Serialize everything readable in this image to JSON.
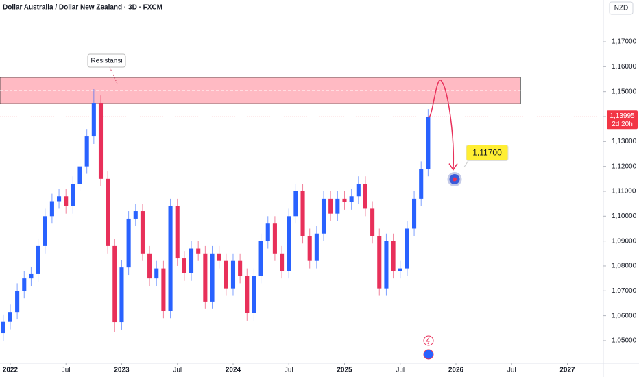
{
  "chart_data": {
    "type": "candlestick",
    "title": "Dollar Australia / Dollar New Zealand · 3D · FXCM",
    "currency": "NZD",
    "up_color": "#2962ff",
    "down_color": "#e8305a",
    "xlim": [
      2021.908,
      2027.323
    ],
    "xticks": [
      2022,
      {
        "value": 2022.5,
        "label": "Jul"
      },
      2023,
      {
        "value": 2023.5,
        "label": "Jul"
      },
      2024,
      {
        "value": 2024.5,
        "label": "Jul"
      },
      2025,
      {
        "value": 2025.5,
        "label": "Jul"
      },
      2026,
      {
        "value": 2026.5,
        "label": "Jul"
      },
      2027
    ],
    "ylim": [
      1.0409,
      1.1868
    ],
    "yticks": [
      {
        "value": 1.05,
        "label": "1,05000"
      },
      {
        "value": 1.06,
        "label": "1,06000"
      },
      {
        "value": 1.07,
        "label": "1,07000"
      },
      {
        "value": 1.08,
        "label": "1,08000"
      },
      {
        "value": 1.09,
        "label": "1,09000"
      },
      {
        "value": 1.1,
        "label": "1,10000"
      },
      {
        "value": 1.11,
        "label": "1,11000"
      },
      {
        "value": 1.12,
        "label": "1,12000"
      },
      {
        "value": 1.13,
        "label": "1,13000"
      },
      {
        "value": 1.14,
        "label": "1,14000"
      },
      {
        "value": 1.15,
        "label": "1,15000"
      },
      {
        "value": 1.16,
        "label": "1,16000"
      },
      {
        "value": 1.17,
        "label": "1,17000"
      }
    ],
    "x": [
      2021.9375,
      2022,
      2022.0625,
      2022.125,
      2022.1875,
      2022.25,
      2022.3125,
      2022.375,
      2022.4375,
      2022.5,
      2022.5625,
      2022.625,
      2022.6875,
      2022.75,
      2022.8125,
      2022.875,
      2022.9375,
      2023,
      2023.0625,
      2023.125,
      2023.1875,
      2023.25,
      2023.3125,
      2023.375,
      2023.4375,
      2023.5,
      2023.5625,
      2023.625,
      2023.6875,
      2023.75,
      2023.8125,
      2023.875,
      2023.9375,
      2024,
      2024.0625,
      2024.125,
      2024.1875,
      2024.25,
      2024.3125,
      2024.375,
      2024.4375,
      2024.5,
      2024.5625,
      2024.625,
      2024.6875,
      2024.75,
      2024.8125,
      2024.875,
      2024.9375,
      2025,
      2025.0625,
      2025.125,
      2025.1875,
      2025.25,
      2025.3125,
      2025.375,
      2025.4375,
      2025.5,
      2025.5625,
      2025.625,
      2025.6875,
      2025.75
    ],
    "open": [
      1.053,
      1.0575,
      1.0615,
      1.07,
      1.075,
      1.0767,
      1.088,
      1.1,
      1.106,
      1.108,
      1.104,
      1.113,
      1.12,
      1.132,
      1.1455,
      1.115,
      1.088,
      1.0574,
      1.0794,
      1.099,
      1.102,
      1.085,
      1.075,
      1.079,
      1.062,
      1.104,
      1.083,
      1.077,
      1.087,
      1.085,
      1.0657,
      1.085,
      1.082,
      1.071,
      1.082,
      1.076,
      1.061,
      1.076,
      1.09,
      1.097,
      1.085,
      1.078,
      1.1,
      1.11,
      1.092,
      1.082,
      1.093,
      1.107,
      1.101,
      1.107,
      1.1056,
      1.108,
      1.113,
      1.103,
      1.092,
      1.071,
      1.09,
      1.078,
      1.079,
      1.095,
      1.107,
      1.119
    ],
    "high": [
      1.0605,
      1.0645,
      1.073,
      1.078,
      1.0797,
      1.091,
      1.103,
      1.109,
      1.111,
      1.111,
      1.116,
      1.123,
      1.135,
      1.151,
      1.1485,
      1.118,
      1.091,
      1.0824,
      1.102,
      1.105,
      1.105,
      1.088,
      1.082,
      1.082,
      1.107,
      1.107,
      1.086,
      1.09,
      1.09,
      1.088,
      1.088,
      1.088,
      1.085,
      1.085,
      1.085,
      1.079,
      1.079,
      1.093,
      1.1,
      1.1,
      1.088,
      1.103,
      1.113,
      1.113,
      1.095,
      1.096,
      1.11,
      1.11,
      1.11,
      1.11,
      1.111,
      1.116,
      1.116,
      1.106,
      1.095,
      1.093,
      1.093,
      1.082,
      1.098,
      1.11,
      1.122,
      1.143
    ],
    "low": [
      1.05,
      1.0545,
      1.0585,
      1.067,
      1.072,
      1.0737,
      1.085,
      1.097,
      1.103,
      1.101,
      1.101,
      1.11,
      1.117,
      1.129,
      1.112,
      1.085,
      1.0534,
      1.0544,
      1.0764,
      1.096,
      1.082,
      1.072,
      1.072,
      1.059,
      1.059,
      1.08,
      1.074,
      1.074,
      1.082,
      1.0627,
      1.0627,
      1.079,
      1.068,
      1.068,
      1.073,
      1.058,
      1.058,
      1.073,
      1.087,
      1.082,
      1.075,
      1.075,
      1.097,
      1.089,
      1.079,
      1.079,
      1.09,
      1.098,
      1.098,
      1.1026,
      1.1026,
      1.105,
      1.1,
      1.089,
      1.068,
      1.068,
      1.075,
      1.075,
      1.076,
      1.092,
      1.104,
      1.116
    ],
    "close": [
      1.0575,
      1.0615,
      1.07,
      1.075,
      1.0767,
      1.088,
      1.1,
      1.106,
      1.108,
      1.104,
      1.113,
      1.12,
      1.132,
      1.1455,
      1.115,
      1.088,
      1.0574,
      1.0794,
      1.099,
      1.102,
      1.085,
      1.075,
      1.079,
      1.062,
      1.104,
      1.083,
      1.077,
      1.087,
      1.085,
      1.0657,
      1.085,
      1.082,
      1.071,
      1.082,
      1.076,
      1.061,
      1.076,
      1.09,
      1.097,
      1.085,
      1.078,
      1.1,
      1.11,
      1.092,
      1.082,
      1.093,
      1.107,
      1.101,
      1.107,
      1.1056,
      1.108,
      1.113,
      1.103,
      1.092,
      1.071,
      1.09,
      1.078,
      1.079,
      1.095,
      1.107,
      1.119,
      1.14
    ],
    "zone": {
      "label": "Resistansi",
      "low": 1.1452,
      "high": 1.1557,
      "x_end": 2026.58,
      "color": "#ffb3bd"
    },
    "current_price": {
      "value": 1.13995,
      "label": "1,13995",
      "countdown": "2d 20h",
      "color": "#f23645"
    },
    "target": {
      "value": 1.117,
      "label": "1,11700",
      "color": "#ffee33"
    }
  }
}
